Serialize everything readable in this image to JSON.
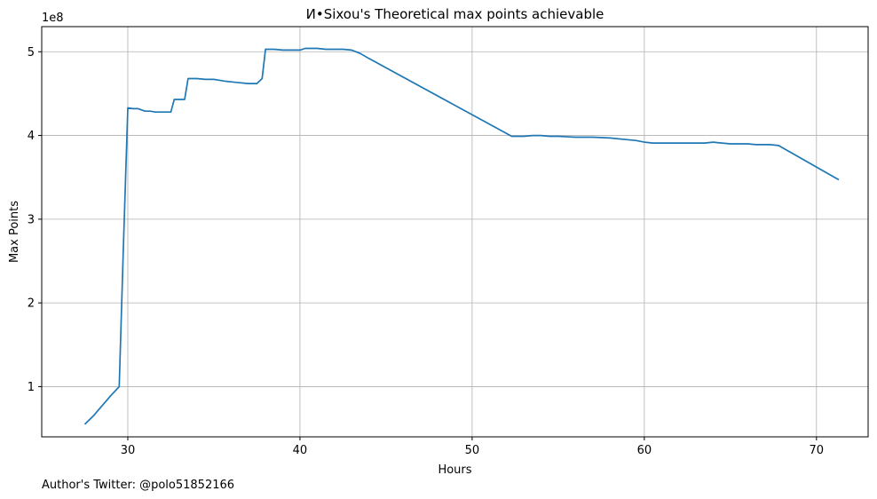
{
  "chart_data": {
    "type": "line",
    "title": "И•Sixou's Theoretical max points achievable",
    "xlabel": "Hours",
    "ylabel": "Max Points",
    "y_offset_label": "1e8",
    "xlim": [
      25,
      73
    ],
    "ylim": [
      0.4,
      5.3
    ],
    "x_ticks": [
      30,
      40,
      50,
      60,
      70
    ],
    "y_ticks": [
      1,
      2,
      3,
      4,
      5
    ],
    "grid": true,
    "line_color": "#1f77b4",
    "series": [
      {
        "x": [
          27.5,
          28.0,
          28.5,
          29.0,
          29.5,
          29.75,
          30.0,
          30.3,
          30.6,
          31.0,
          31.3,
          31.6,
          31.9,
          32.2,
          32.5,
          32.7,
          33.0,
          33.3,
          33.5,
          33.8,
          34.0,
          34.5,
          35.0,
          35.3,
          35.6,
          36.0,
          36.5,
          37.0,
          37.5,
          37.8,
          38.0,
          38.1,
          38.5,
          39.0,
          39.5,
          40.0,
          40.3,
          40.6,
          41.0,
          41.5,
          42.0,
          42.5,
          43.0,
          43.5,
          44.0,
          52.3,
          53.0,
          53.5,
          54.0,
          54.5,
          55.0,
          56.0,
          57.0,
          58.0,
          59.0,
          59.5,
          60.0,
          60.5,
          61.0,
          61.5,
          62.0,
          62.5,
          63.0,
          63.5,
          64.0,
          64.5,
          65.0,
          65.5,
          66.0,
          66.5,
          67.0,
          67.3,
          67.8,
          71.3
        ],
        "y": [
          0.55,
          0.65,
          0.77,
          0.89,
          1.0,
          2.7,
          4.33,
          4.32,
          4.32,
          4.29,
          4.29,
          4.28,
          4.28,
          4.28,
          4.28,
          4.43,
          4.43,
          4.43,
          4.68,
          4.68,
          4.68,
          4.67,
          4.67,
          4.66,
          4.65,
          4.64,
          4.63,
          4.62,
          4.62,
          4.68,
          5.03,
          5.03,
          5.03,
          5.02,
          5.02,
          5.02,
          5.04,
          5.04,
          5.04,
          5.03,
          5.03,
          5.03,
          5.02,
          4.98,
          4.92,
          3.99,
          3.99,
          4.0,
          4.0,
          3.99,
          3.99,
          3.98,
          3.98,
          3.97,
          3.95,
          3.94,
          3.92,
          3.91,
          3.91,
          3.91,
          3.91,
          3.91,
          3.91,
          3.91,
          3.92,
          3.91,
          3.9,
          3.9,
          3.9,
          3.89,
          3.89,
          3.89,
          3.88,
          3.47
        ]
      }
    ]
  },
  "footer": {
    "author": "Author's Twitter: @polo51852166"
  }
}
